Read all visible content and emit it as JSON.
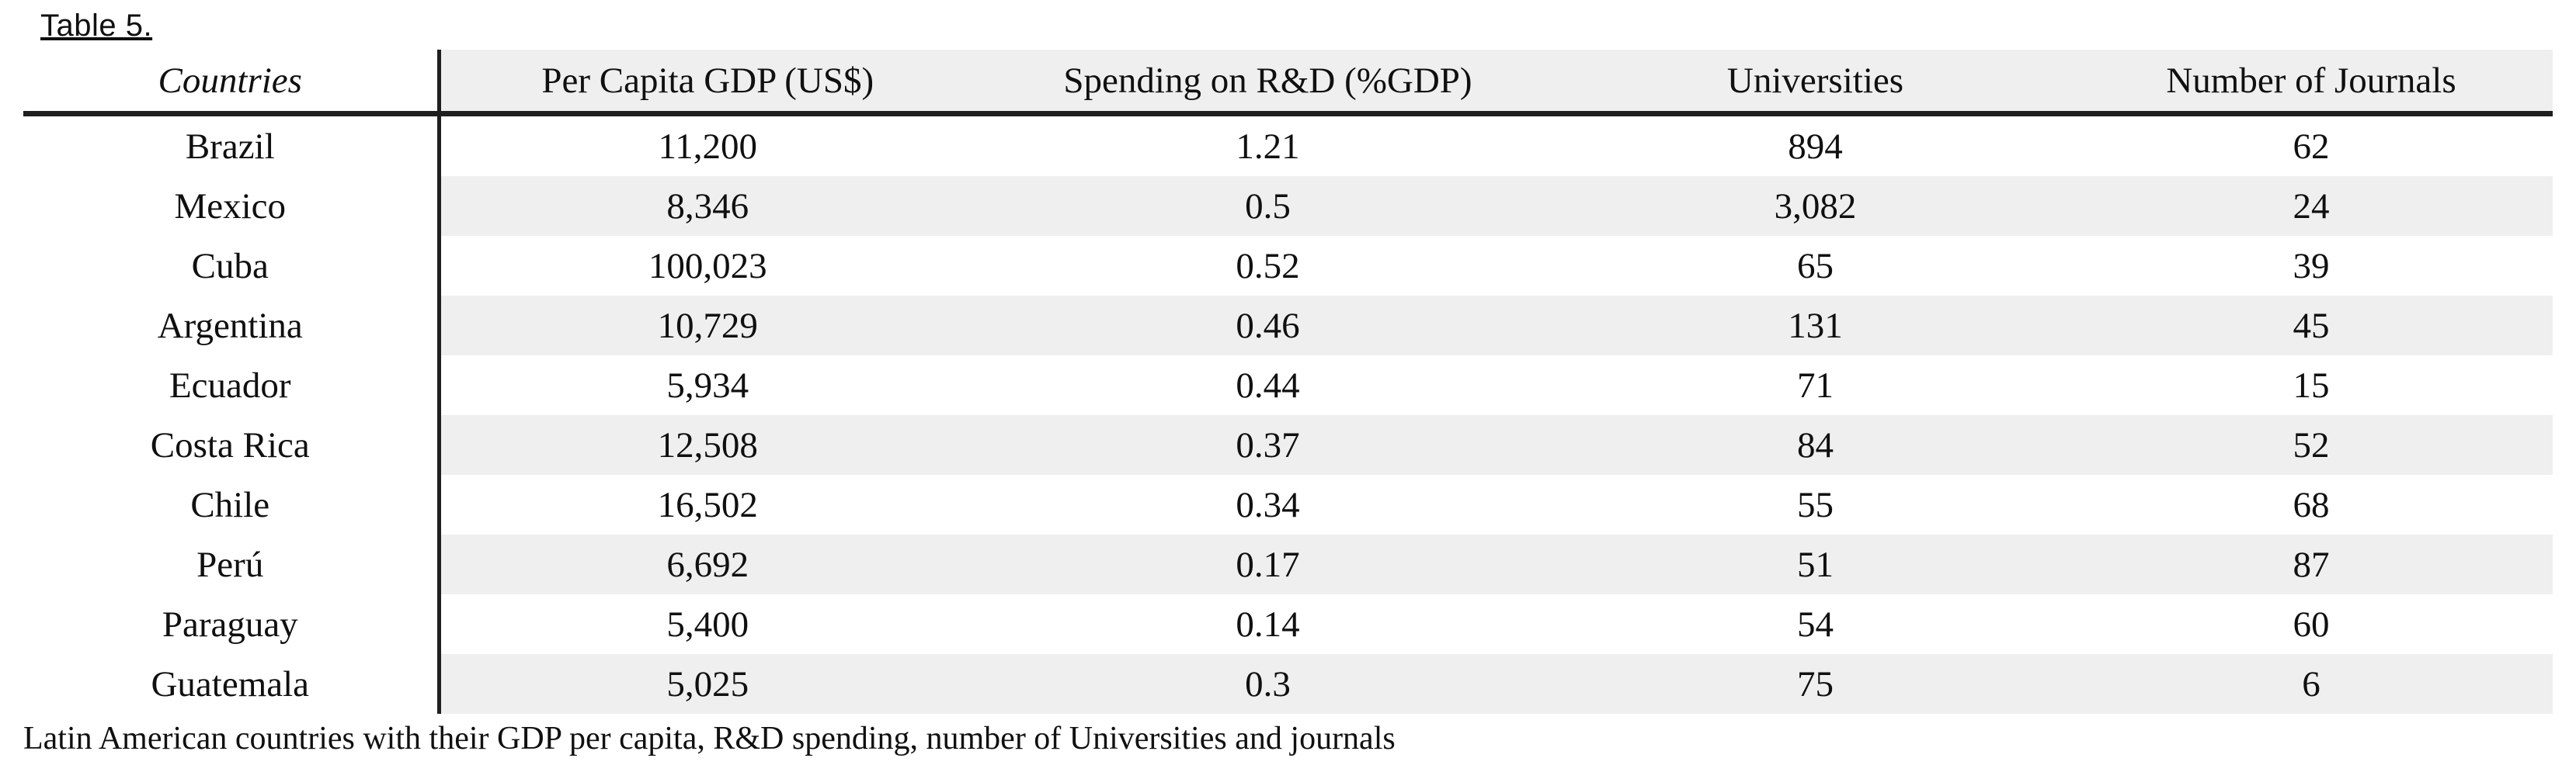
{
  "label": "Table 5.",
  "caption": "Latin American countries with their GDP per capita, R&D spending, number of Universities and journals",
  "colors": {
    "stripe": "#efefef",
    "rule": "#1f1f1f",
    "background": "#ffffff",
    "text": "#101010"
  },
  "table": {
    "columns": [
      "Countries",
      "Per Capita GDP (US$)",
      "Spending on R&D (%GDP)",
      "Universities",
      "Number of Journals"
    ],
    "rows": [
      {
        "country": "Brazil",
        "gdp": "11,200",
        "rd": "1.21",
        "universities": "894",
        "journals": "62"
      },
      {
        "country": "Mexico",
        "gdp": "8,346",
        "rd": "0.5",
        "universities": "3,082",
        "journals": "24"
      },
      {
        "country": "Cuba",
        "gdp": "100,023",
        "rd": "0.52",
        "universities": "65",
        "journals": "39"
      },
      {
        "country": "Argentina",
        "gdp": "10,729",
        "rd": "0.46",
        "universities": "131",
        "journals": "45"
      },
      {
        "country": "Ecuador",
        "gdp": "5,934",
        "rd": "0.44",
        "universities": "71",
        "journals": "15"
      },
      {
        "country": "Costa Rica",
        "gdp": "12,508",
        "rd": "0.37",
        "universities": "84",
        "journals": "52"
      },
      {
        "country": "Chile",
        "gdp": "16,502",
        "rd": "0.34",
        "universities": "55",
        "journals": "68"
      },
      {
        "country": "Perú",
        "gdp": "6,692",
        "rd": "0.17",
        "universities": "51",
        "journals": "87"
      },
      {
        "country": "Paraguay",
        "gdp": "5,400",
        "rd": "0.14",
        "universities": "54",
        "journals": "60"
      },
      {
        "country": "Guatemala",
        "gdp": "5,025",
        "rd": "0.3",
        "universities": "75",
        "journals": "6"
      }
    ]
  }
}
